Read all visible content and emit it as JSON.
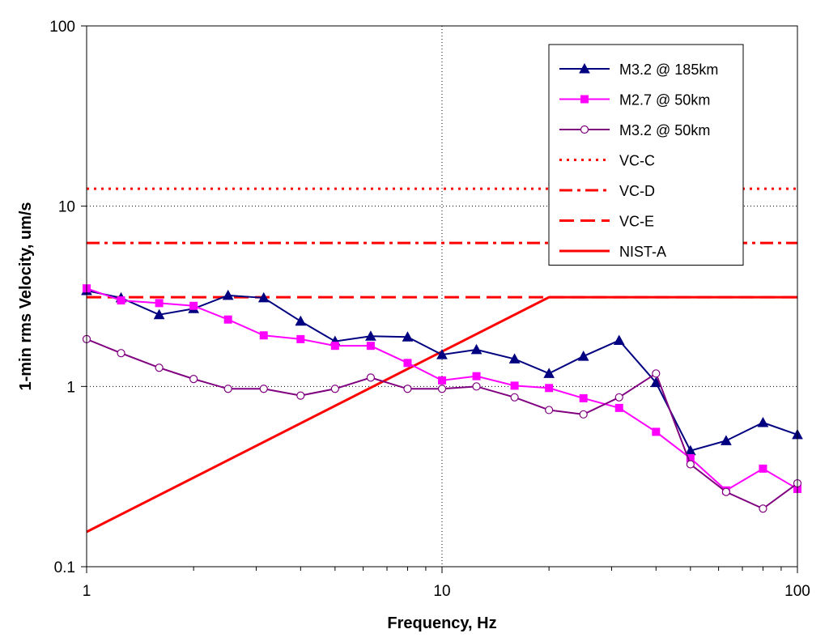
{
  "chart_data": {
    "type": "line",
    "xlabel": "Frequency, Hz",
    "ylabel": "1-min rms Velocity, um/s",
    "xscale": "log",
    "yscale": "log",
    "xlim": [
      1,
      100
    ],
    "ylim": [
      0.1,
      100
    ],
    "x_ticks": [
      "1",
      "10",
      "100"
    ],
    "y_ticks": [
      "0.1",
      "1",
      "10",
      "100"
    ],
    "grid": "dotted major gridlines",
    "legend_position": "top-right",
    "x": [
      1,
      1.25,
      1.6,
      2,
      2.5,
      3.15,
      4,
      5,
      6.3,
      8,
      10,
      12.5,
      16,
      20,
      25,
      31.5,
      40,
      50,
      63,
      80,
      100
    ],
    "series": [
      {
        "name": "M3.2 @ 185km",
        "color": "#000080",
        "marker": "triangle",
        "values": [
          3.4,
          3.1,
          2.5,
          2.7,
          3.2,
          3.1,
          2.3,
          1.78,
          1.9,
          1.88,
          1.5,
          1.6,
          1.42,
          1.18,
          1.47,
          1.8,
          1.05,
          0.44,
          0.5,
          0.63,
          0.54
        ]
      },
      {
        "name": "M2.7 @ 50km",
        "color": "#ff00ff",
        "marker": "square",
        "values": [
          3.5,
          3.0,
          2.9,
          2.8,
          2.35,
          1.92,
          1.83,
          1.68,
          1.68,
          1.35,
          1.08,
          1.14,
          1.01,
          0.98,
          0.86,
          0.76,
          0.56,
          0.4,
          0.265,
          0.35,
          0.27
        ]
      },
      {
        "name": "M3.2 @ 50km",
        "color": "#800080",
        "marker": "circle",
        "values": [
          1.83,
          1.53,
          1.27,
          1.1,
          0.97,
          0.97,
          0.89,
          0.97,
          1.12,
          0.97,
          0.97,
          1.0,
          0.87,
          0.74,
          0.7,
          0.87,
          1.18,
          0.37,
          0.26,
          0.21,
          0.29
        ]
      },
      {
        "name": "VC-C",
        "color": "#ff0000",
        "style": "dotted",
        "x": [
          1,
          100
        ],
        "values": [
          12.5,
          12.5
        ]
      },
      {
        "name": "VC-D",
        "color": "#ff0000",
        "style": "dash-dot",
        "x": [
          1,
          100
        ],
        "values": [
          6.25,
          6.25
        ]
      },
      {
        "name": "VC-E",
        "color": "#ff0000",
        "style": "dashed",
        "x": [
          1,
          100
        ],
        "values": [
          3.125,
          3.125
        ]
      },
      {
        "name": "NIST-A",
        "color": "#ff0000",
        "style": "solid",
        "x": [
          1,
          20,
          100
        ],
        "values": [
          0.156,
          3.125,
          3.125
        ]
      }
    ]
  }
}
